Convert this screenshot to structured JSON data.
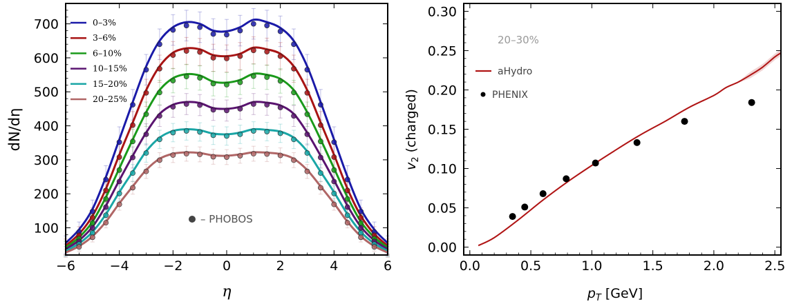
{
  "chart_data": [
    {
      "type": "line",
      "ylabel": "dN/dη",
      "xlabel": "η",
      "xlim": [
        -6,
        6
      ],
      "ylim": [
        20,
        760
      ],
      "x_ticks": [
        -6,
        -4,
        -2,
        0,
        2,
        4,
        6
      ],
      "y_ticks": [
        100,
        200,
        300,
        400,
        500,
        600,
        700
      ],
      "legend_position": "top-left",
      "annotation": "– PHOBOS",
      "series": [
        {
          "name": "0–3%",
          "color": "#1a1aa8",
          "x": [
            -6,
            -5.5,
            -5,
            -4.5,
            -4,
            -3.5,
            -3,
            -2.5,
            -2,
            -1.5,
            -1,
            -0.5,
            0,
            0.5,
            1,
            1.5,
            2,
            2.5,
            3,
            3.5,
            4,
            4.5,
            5,
            5.5,
            6
          ],
          "values": [
            55,
            95,
            155,
            250,
            360,
            470,
            575,
            650,
            690,
            705,
            700,
            680,
            678,
            690,
            712,
            705,
            688,
            650,
            575,
            470,
            360,
            250,
            155,
            95,
            55
          ],
          "data_y": [
            50,
            88,
            148,
            242,
            352,
            462,
            565,
            640,
            682,
            695,
            690,
            670,
            668,
            680,
            700,
            695,
            678,
            640,
            565,
            462,
            352,
            242,
            148,
            88,
            50
          ],
          "err": 45
        },
        {
          "name": "3–6%",
          "color": "#a81414",
          "x": [
            -6,
            -5.5,
            -5,
            -4.5,
            -4,
            -3.5,
            -3,
            -2.5,
            -2,
            -1.5,
            -1,
            -0.5,
            0,
            0.5,
            1,
            1.5,
            2,
            2.5,
            3,
            3.5,
            4,
            4.5,
            5,
            5.5,
            6
          ],
          "values": [
            47,
            82,
            135,
            215,
            315,
            410,
            505,
            575,
            615,
            628,
            625,
            608,
            605,
            612,
            630,
            625,
            612,
            575,
            505,
            410,
            315,
            215,
            135,
            82,
            47
          ],
          "data_y": [
            44,
            78,
            130,
            210,
            308,
            402,
            497,
            568,
            608,
            620,
            617,
            600,
            598,
            605,
            622,
            618,
            605,
            568,
            497,
            402,
            308,
            210,
            130,
            78,
            44
          ],
          "err": 40
        },
        {
          "name": "6–10%",
          "color": "#1a9a1a",
          "x": [
            -6,
            -5.5,
            -5,
            -4.5,
            -4,
            -3.5,
            -3,
            -2.5,
            -2,
            -1.5,
            -1,
            -0.5,
            0,
            0.5,
            1,
            1.5,
            2,
            2.5,
            3,
            3.5,
            4,
            4.5,
            5,
            5.5,
            6
          ],
          "values": [
            42,
            72,
            118,
            190,
            275,
            360,
            440,
            505,
            540,
            552,
            548,
            530,
            527,
            535,
            553,
            550,
            538,
            505,
            440,
            360,
            275,
            190,
            118,
            72,
            42
          ],
          "data_y": [
            40,
            68,
            114,
            185,
            270,
            354,
            434,
            498,
            533,
            545,
            541,
            524,
            521,
            528,
            546,
            543,
            532,
            498,
            434,
            354,
            270,
            185,
            114,
            68,
            40
          ],
          "err": 36
        },
        {
          "name": "10–15%",
          "color": "#5a1470",
          "x": [
            -6,
            -5.5,
            -5,
            -4.5,
            -4,
            -3.5,
            -3,
            -2.5,
            -2,
            -1.5,
            -1,
            -0.5,
            0,
            0.5,
            1,
            1.5,
            2,
            2.5,
            3,
            3.5,
            4,
            4.5,
            5,
            5.5,
            6
          ],
          "values": [
            37,
            63,
            103,
            165,
            240,
            312,
            380,
            435,
            462,
            470,
            467,
            452,
            450,
            456,
            470,
            468,
            460,
            435,
            380,
            312,
            240,
            165,
            103,
            63,
            37
          ],
          "data_y": [
            35,
            60,
            100,
            161,
            236,
            307,
            375,
            429,
            456,
            464,
            461,
            447,
            445,
            450,
            464,
            462,
            454,
            429,
            375,
            307,
            236,
            161,
            100,
            60,
            35
          ],
          "err": 31
        },
        {
          "name": "15–20%",
          "color": "#1aa6a6",
          "x": [
            -6,
            -5.5,
            -5,
            -4.5,
            -4,
            -3.5,
            -3,
            -2.5,
            -2,
            -1.5,
            -1,
            -0.5,
            0,
            0.5,
            1,
            1.5,
            2,
            2.5,
            3,
            3.5,
            4,
            4.5,
            5,
            5.5,
            6
          ],
          "values": [
            32,
            54,
            88,
            140,
            205,
            265,
            325,
            365,
            385,
            390,
            387,
            377,
            375,
            380,
            390,
            388,
            383,
            365,
            325,
            265,
            205,
            140,
            88,
            54,
            32
          ],
          "data_y": [
            30,
            52,
            85,
            137,
            201,
            261,
            320,
            360,
            380,
            385,
            382,
            372,
            370,
            375,
            385,
            383,
            378,
            360,
            320,
            261,
            201,
            137,
            85,
            52,
            30
          ],
          "err": 27
        },
        {
          "name": "20–25%",
          "color": "#b06666",
          "x": [
            -6,
            -5.5,
            -5,
            -4.5,
            -4,
            -3.5,
            -3,
            -2.5,
            -2,
            -1.5,
            -1,
            -0.5,
            0,
            0.5,
            1,
            1.5,
            2,
            2.5,
            3,
            3.5,
            4,
            4.5,
            5,
            5.5,
            6
          ],
          "values": [
            27,
            46,
            75,
            118,
            172,
            222,
            270,
            303,
            318,
            322,
            320,
            313,
            312,
            316,
            322,
            321,
            317,
            303,
            270,
            222,
            172,
            118,
            75,
            46,
            27
          ],
          "data_y": [
            25,
            44,
            72,
            115,
            169,
            218,
            266,
            299,
            314,
            318,
            316,
            309,
            308,
            312,
            318,
            317,
            313,
            299,
            266,
            218,
            169,
            115,
            72,
            44,
            25
          ],
          "err": 22
        }
      ]
    },
    {
      "type": "line",
      "ylabel": "v2 (charged)",
      "xlabel": "pT [GeV]",
      "xlim": [
        -0.05,
        2.55
      ],
      "ylim": [
        -0.01,
        0.31
      ],
      "x_ticks": [
        0.0,
        0.5,
        1.0,
        1.5,
        2.0,
        2.5
      ],
      "y_ticks": [
        0.0,
        0.05,
        0.1,
        0.15,
        0.2,
        0.25,
        0.3
      ],
      "centrality_label": "20–30%",
      "legend_position": "top-left",
      "series": [
        {
          "name": "aHydro",
          "color": "#b01414",
          "x": [
            0.07,
            0.2,
            0.4,
            0.6,
            0.8,
            1.0,
            1.2,
            1.4,
            1.6,
            1.8,
            2.0,
            2.1,
            2.2,
            2.3,
            2.4,
            2.5,
            2.55
          ],
          "values": [
            0.002,
            0.012,
            0.035,
            0.06,
            0.083,
            0.104,
            0.124,
            0.143,
            0.16,
            0.178,
            0.193,
            0.203,
            0.21,
            0.219,
            0.229,
            0.242,
            0.247
          ]
        },
        {
          "name": "PHENIX",
          "color": "#000000",
          "x": [
            0.35,
            0.45,
            0.6,
            0.79,
            1.03,
            1.37,
            1.76,
            2.31
          ],
          "values": [
            0.039,
            0.051,
            0.068,
            0.087,
            0.107,
            0.133,
            0.16,
            0.184
          ]
        }
      ]
    }
  ]
}
